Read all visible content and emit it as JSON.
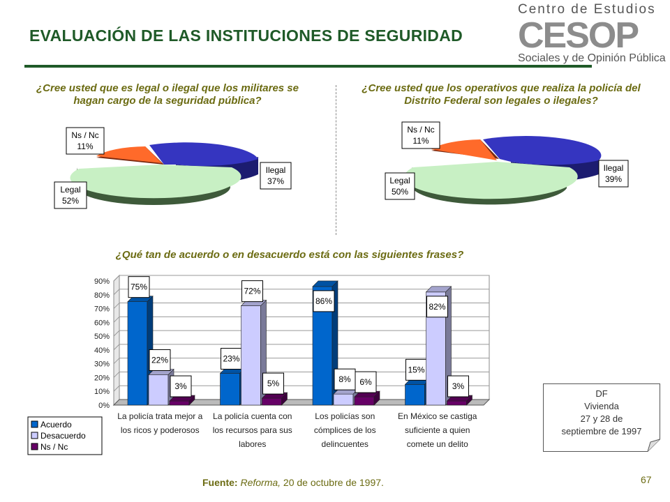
{
  "title": "EVALUACIÓN DE LAS INSTITUCIONES DE SEGURIDAD",
  "logo": {
    "line1": "Centro de Estudios",
    "mark": "CESOP",
    "line2": "Sociales y de Opinión Pública"
  },
  "pie_left": {
    "question": "¿Cree usted que es legal o ilegal que los militares se hagan cargo de la seguridad pública?",
    "labels": [
      {
        "name": "Ilegal",
        "value": "37%"
      },
      {
        "name": "Legal",
        "value": "52%"
      },
      {
        "name": "Ns / Nc",
        "value": "11%"
      }
    ]
  },
  "pie_right": {
    "question": "¿Cree usted que los operativos que realiza la policía del Distrito Federal son legales o ilegales?",
    "labels": [
      {
        "name": "Ilegal",
        "value": "39%"
      },
      {
        "name": "Legal",
        "value": "50%"
      },
      {
        "name": "Ns / Nc",
        "value": "11%"
      }
    ]
  },
  "bar_question": "¿Qué tan de acuerdo o en desacuerdo está con las siguientes frases?",
  "chart_data": [
    {
      "type": "pie",
      "categories": [
        "Ilegal",
        "Legal",
        "Ns / Nc"
      ],
      "values": [
        37,
        52,
        11
      ],
      "colors": [
        "#3333cc",
        "#ccffcc",
        "#ff6633"
      ]
    },
    {
      "type": "pie",
      "categories": [
        "Ilegal",
        "Legal",
        "Ns / Nc"
      ],
      "values": [
        39,
        50,
        11
      ],
      "colors": [
        "#3333cc",
        "#ccffcc",
        "#ff6633"
      ]
    },
    {
      "type": "bar",
      "categories": [
        [
          "La policía trata mejor a",
          "los ricos y poderosos"
        ],
        [
          "La policía cuenta con",
          "los recursos para sus",
          "labores"
        ],
        [
          "Los policías son",
          "cómplices de los",
          "delincuentes"
        ],
        [
          "En México se castiga",
          "suficiente a quien",
          "comete un delito"
        ]
      ],
      "series": [
        {
          "name": "Acuerdo",
          "values": [
            75,
            23,
            86,
            15
          ],
          "color": "#0066cc"
        },
        {
          "name": "Desacuerdo",
          "values": [
            22,
            72,
            8,
            82
          ],
          "color": "#ccccff"
        },
        {
          "name": "Ns / Nc",
          "values": [
            3,
            5,
            6,
            3
          ],
          "color": "#660066"
        }
      ],
      "ylim": [
        0,
        90
      ],
      "yticks": [
        "0%",
        "10%",
        "20%",
        "30%",
        "40%",
        "50%",
        "60%",
        "70%",
        "80%",
        "90%"
      ],
      "grid": true,
      "legend": "bottom-left"
    }
  ],
  "note": {
    "lines": [
      "DF",
      "Vivienda",
      "27 y 28 de",
      "septiembre de 1997"
    ]
  },
  "source": {
    "label": "Fuente:",
    "text": "Reforma,",
    "rest": " 20 de octubre de 1997."
  },
  "page_number": "67"
}
